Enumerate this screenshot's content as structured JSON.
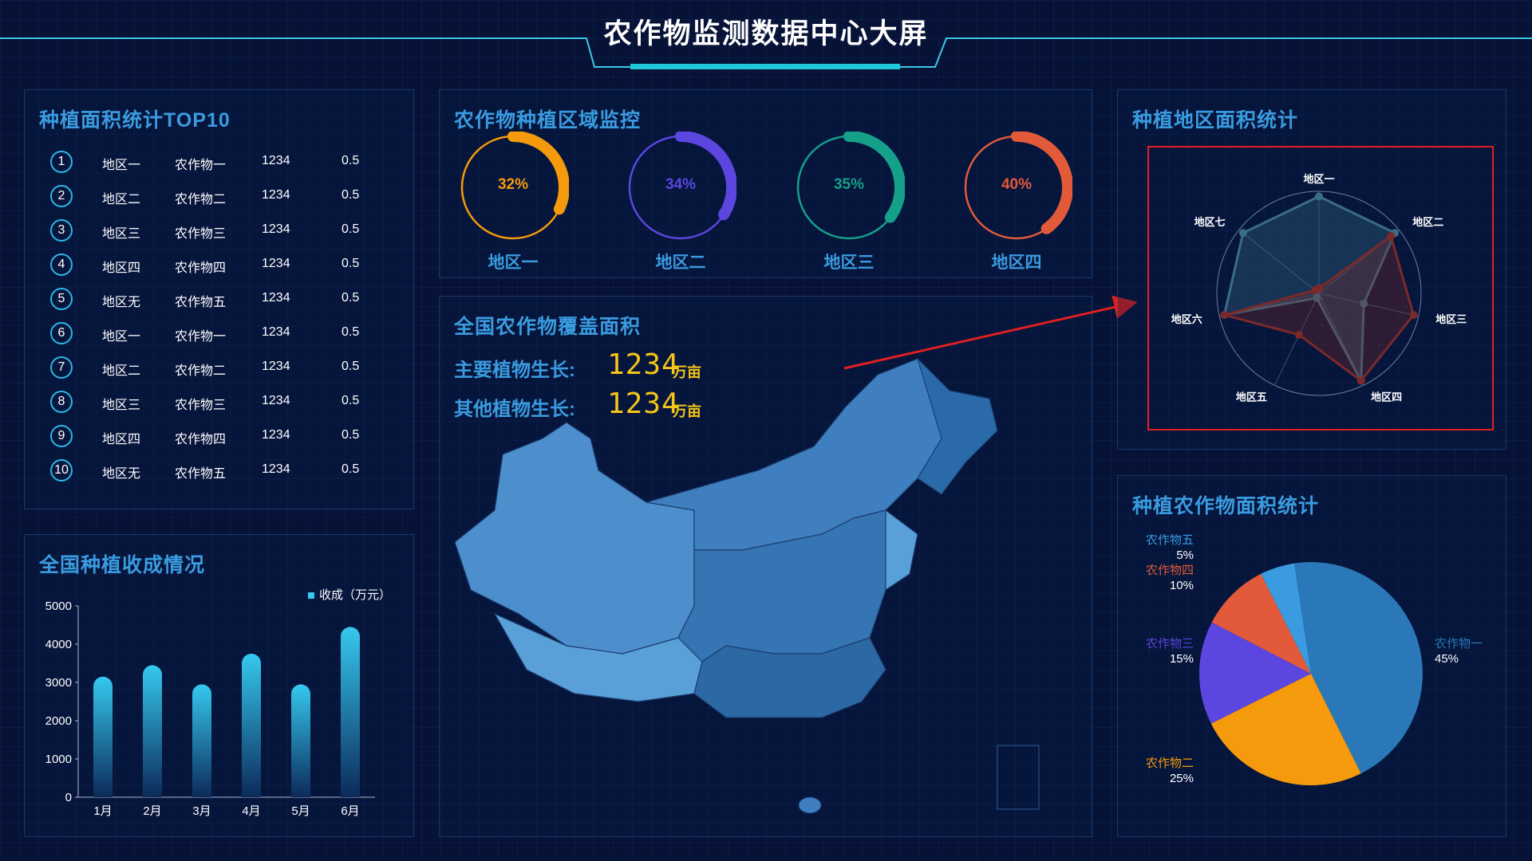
{
  "header": {
    "title": "农作物监测数据中心大屏"
  },
  "top10": {
    "title": "种植面积统计TOP10",
    "rows": [
      {
        "rank": "1",
        "region": "地区一",
        "crop": "农作物一",
        "value": "1234",
        "ratio": "0.5"
      },
      {
        "rank": "2",
        "region": "地区二",
        "crop": "农作物二",
        "value": "1234",
        "ratio": "0.5"
      },
      {
        "rank": "3",
        "region": "地区三",
        "crop": "农作物三",
        "value": "1234",
        "ratio": "0.5"
      },
      {
        "rank": "4",
        "region": "地区四",
        "crop": "农作物四",
        "value": "1234",
        "ratio": "0.5"
      },
      {
        "rank": "5",
        "region": "地区无",
        "crop": "农作物五",
        "value": "1234",
        "ratio": "0.5"
      },
      {
        "rank": "6",
        "region": "地区一",
        "crop": "农作物一",
        "value": "1234",
        "ratio": "0.5"
      },
      {
        "rank": "7",
        "region": "地区二",
        "crop": "农作物二",
        "value": "1234",
        "ratio": "0.5"
      },
      {
        "rank": "8",
        "region": "地区三",
        "crop": "农作物三",
        "value": "1234",
        "ratio": "0.5"
      },
      {
        "rank": "9",
        "region": "地区四",
        "crop": "农作物四",
        "value": "1234",
        "ratio": "0.5"
      },
      {
        "rank": "10",
        "region": "地区无",
        "crop": "农作物五",
        "value": "1234",
        "ratio": "0.5"
      }
    ]
  },
  "monitor": {
    "title": "农作物种植区域监控",
    "items": [
      {
        "label": "地区一",
        "pct_text": "32%",
        "fraction": 0.32,
        "color": "#f59a0c"
      },
      {
        "label": "地区二",
        "pct_text": "34%",
        "fraction": 0.34,
        "color": "#5b46e0"
      },
      {
        "label": "地区三",
        "pct_text": "35%",
        "fraction": 0.35,
        "color": "#15a08a"
      },
      {
        "label": "地区四",
        "pct_text": "40%",
        "fraction": 0.4,
        "color": "#e25a3a"
      }
    ]
  },
  "coverage": {
    "title": "全国农作物覆盖面积",
    "main_label": "主要植物生长:",
    "main_value": "1234",
    "main_unit": "万亩",
    "other_label": "其他植物生长:",
    "other_value": "1234",
    "other_unit": "万亩"
  },
  "radar_panel": {
    "title": "种植地区面积统计"
  },
  "pie_panel": {
    "title": "种植农作物面积统计"
  },
  "harvest_panel": {
    "title": "全国种植收成情况"
  },
  "colors": {
    "accent": "#3a9be0",
    "gold": "#f5c518",
    "border": "#2bb7e6",
    "highlight": "#e02020"
  },
  "chart_data": [
    {
      "type": "bar",
      "categories": [
        "1月",
        "2月",
        "3月",
        "4月",
        "5月",
        "6月"
      ],
      "series": [
        {
          "name": "收成（万元）",
          "values": [
            3150,
            3450,
            2950,
            3750,
            2950,
            4450
          ]
        }
      ],
      "ylim": [
        0,
        5000
      ],
      "yticks": [
        "0",
        "1000",
        "2000",
        "3000",
        "4000",
        "5000"
      ],
      "legend": "top-right",
      "grid": false
    },
    {
      "type": "radar",
      "indicators": [
        "地区一",
        "地区二",
        "地区三",
        "地区四",
        "地区五",
        "地区六",
        "地区七"
      ],
      "series": [
        {
          "values": [
            0.95,
            0.95,
            0.45,
            0.95,
            0.05,
            0.95,
            0.95
          ],
          "color": "#3a6e86"
        },
        {
          "values": [
            0.05,
            0.9,
            0.95,
            0.95,
            0.45,
            0.95,
            0.05
          ],
          "color": "#7a2a2a"
        }
      ],
      "highlight": true
    },
    {
      "type": "pie",
      "slices": [
        {
          "name": "农作物一",
          "value_text": "45%",
          "value": 45,
          "color": "#2a78b8"
        },
        {
          "name": "农作物二",
          "value_text": "25%",
          "value": 25,
          "color": "#f59a0c"
        },
        {
          "name": "农作物三",
          "value_text": "15%",
          "value": 15,
          "color": "#5b46e0"
        },
        {
          "name": "农作物四",
          "value_text": "10%",
          "value": 10,
          "color": "#e25a3a"
        },
        {
          "name": "农作物五",
          "value_text": "5%",
          "value": 5,
          "color": "#3a9be0"
        }
      ]
    }
  ]
}
